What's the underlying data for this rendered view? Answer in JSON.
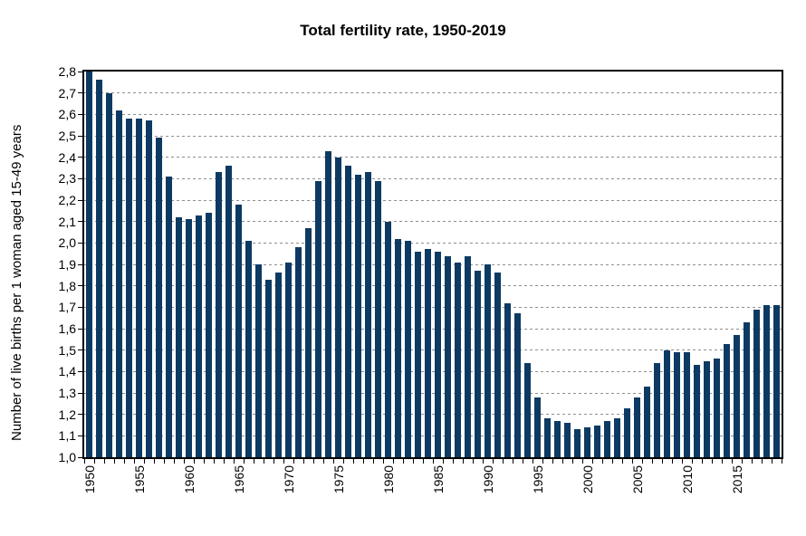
{
  "title": "Total fertility rate, 1950-2019",
  "colors": {
    "bar": "#0d3a62",
    "gridline": "#8f8f8f",
    "axis": "#000000",
    "background": "#ffffff",
    "text": "#000000"
  },
  "chart_data": {
    "type": "bar",
    "title": "Total fertility rate, 1950-2019",
    "ylabel": "Number of live births per 1 woman aged 15-49 years",
    "xlabel": "",
    "ylim": [
      1.0,
      2.8
    ],
    "ytick_step": 0.1,
    "decimal_separator": ",",
    "grid": "horizontal-dashed",
    "legend": "none",
    "ytick_labels": [
      "1,0",
      "1,1",
      "1,2",
      "1,3",
      "1,4",
      "1,5",
      "1,6",
      "1,7",
      "1,8",
      "1,9",
      "2,0",
      "2,1",
      "2,2",
      "2,3",
      "2,4",
      "2,5",
      "2,6",
      "2,7",
      "2,8"
    ],
    "xtick_labels": [
      "1950",
      "1955",
      "1960",
      "1965",
      "1970",
      "1975",
      "1980",
      "1985",
      "1990",
      "1995",
      "2000",
      "2005",
      "2010",
      "2015"
    ],
    "categories": [
      1950,
      1951,
      1952,
      1953,
      1954,
      1955,
      1956,
      1957,
      1958,
      1959,
      1960,
      1961,
      1962,
      1963,
      1964,
      1965,
      1966,
      1967,
      1968,
      1969,
      1970,
      1971,
      1972,
      1973,
      1974,
      1975,
      1976,
      1977,
      1978,
      1979,
      1980,
      1981,
      1982,
      1983,
      1984,
      1985,
      1986,
      1987,
      1988,
      1989,
      1990,
      1991,
      1992,
      1993,
      1994,
      1995,
      1996,
      1997,
      1998,
      1999,
      2000,
      2001,
      2002,
      2003,
      2004,
      2005,
      2006,
      2007,
      2008,
      2009,
      2010,
      2011,
      2012,
      2013,
      2014,
      2015,
      2016,
      2017,
      2018,
      2019
    ],
    "values": [
      2.8,
      2.76,
      2.7,
      2.62,
      2.58,
      2.58,
      2.57,
      2.49,
      2.31,
      2.12,
      2.11,
      2.13,
      2.14,
      2.33,
      2.36,
      2.18,
      2.01,
      1.9,
      1.83,
      1.86,
      1.91,
      1.98,
      2.07,
      2.29,
      2.43,
      2.4,
      2.36,
      2.32,
      2.33,
      2.29,
      2.1,
      2.02,
      2.01,
      1.96,
      1.97,
      1.96,
      1.94,
      1.91,
      1.94,
      1.87,
      1.9,
      1.86,
      1.72,
      1.67,
      1.44,
      1.28,
      1.18,
      1.17,
      1.16,
      1.13,
      1.14,
      1.15,
      1.17,
      1.18,
      1.23,
      1.28,
      1.33,
      1.44,
      1.5,
      1.49,
      1.49,
      1.43,
      1.45,
      1.46,
      1.53,
      1.57,
      1.63,
      1.69,
      1.71,
      1.71
    ]
  }
}
